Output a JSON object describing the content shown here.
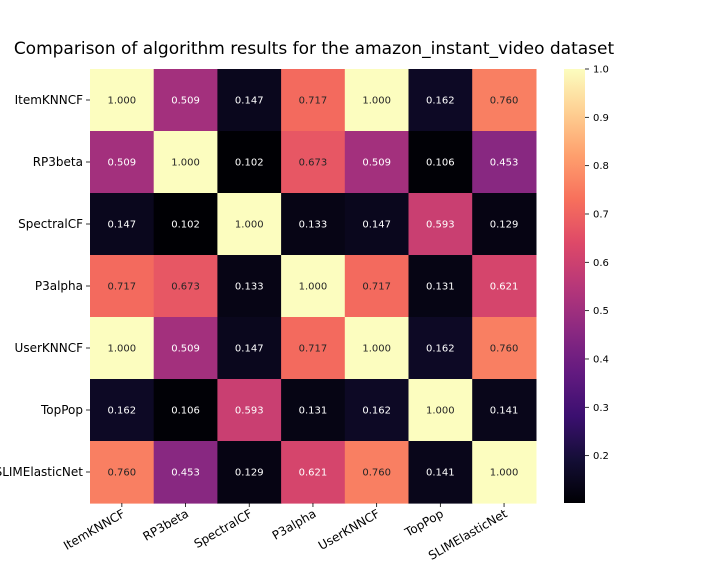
{
  "chart_data": {
    "type": "heatmap",
    "title": "Comparison of algorithm results for the amazon_instant_video dataset",
    "rows": [
      "ItemKNNCF",
      "RP3beta",
      "SpectralCF",
      "P3alpha",
      "UserKNNCF",
      "TopPop",
      "SLIMElasticNet"
    ],
    "columns": [
      "ItemKNNCF",
      "RP3beta",
      "SpectralCF",
      "P3alpha",
      "UserKNNCF",
      "TopPop",
      "SLIMElasticNet"
    ],
    "values": [
      [
        1.0,
        0.509,
        0.147,
        0.717,
        1.0,
        0.162,
        0.76
      ],
      [
        0.509,
        1.0,
        0.102,
        0.673,
        0.509,
        0.106,
        0.453
      ],
      [
        0.147,
        0.102,
        1.0,
        0.133,
        0.147,
        0.593,
        0.129
      ],
      [
        0.717,
        0.673,
        0.133,
        1.0,
        0.717,
        0.131,
        0.621
      ],
      [
        1.0,
        0.509,
        0.147,
        0.717,
        1.0,
        0.162,
        0.76
      ],
      [
        0.162,
        0.106,
        0.593,
        0.131,
        0.162,
        1.0,
        0.141
      ],
      [
        0.76,
        0.453,
        0.129,
        0.621,
        0.76,
        0.141,
        1.0
      ]
    ],
    "value_format": "3 decimals",
    "colormap": "magma",
    "color_range": [
      0.102,
      1.0
    ],
    "colorbar_ticks": [
      0.2,
      0.3,
      0.4,
      0.5,
      0.6,
      0.7,
      0.8,
      0.9,
      1.0
    ],
    "xlabel": "",
    "ylabel": "",
    "grid": false,
    "colorbar_position": "right",
    "xtick_rotation": "30 degrees"
  }
}
